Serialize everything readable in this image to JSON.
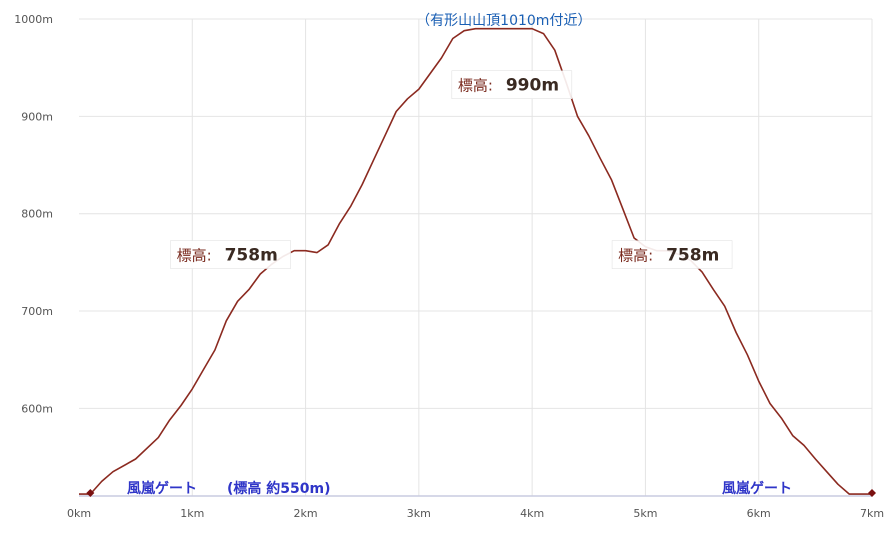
{
  "chart_data": {
    "type": "area",
    "xlim": [
      0,
      7
    ],
    "ylim": [
      510,
      1000
    ],
    "x_ticks": [
      "0km",
      "1km",
      "2km",
      "3km",
      "4km",
      "5km",
      "6km",
      "7km"
    ],
    "y_ticks": [
      "600m",
      "700m",
      "800m",
      "900m",
      "1000m"
    ],
    "grid": true,
    "series": [
      {
        "color": "#8b2a20",
        "x": [
          0.0,
          0.1,
          0.2,
          0.3,
          0.5,
          0.7,
          0.8,
          0.9,
          1.0,
          1.1,
          1.2,
          1.3,
          1.4,
          1.5,
          1.6,
          1.7,
          1.8,
          1.9,
          2.0,
          2.1,
          2.2,
          2.3,
          2.4,
          2.5,
          2.6,
          2.7,
          2.8,
          2.9,
          3.0,
          3.1,
          3.2,
          3.3,
          3.4,
          3.5,
          3.6,
          3.7,
          3.8,
          3.9,
          4.0,
          4.1,
          4.2,
          4.3,
          4.4,
          4.5,
          4.6,
          4.7,
          4.8,
          4.9,
          5.0,
          5.1,
          5.2,
          5.3,
          5.4,
          5.5,
          5.6,
          5.7,
          5.8,
          5.9,
          6.0,
          6.1,
          6.2,
          6.3,
          6.4,
          6.5,
          6.6,
          6.7,
          6.8,
          6.9,
          7.0
        ],
        "y": [
          512,
          512,
          525,
          535,
          548,
          570,
          588,
          603,
          620,
          640,
          660,
          690,
          710,
          722,
          738,
          748,
          756,
          762,
          762,
          760,
          768,
          790,
          808,
          830,
          855,
          880,
          905,
          918,
          928,
          944,
          960,
          980,
          988,
          990,
          990,
          990,
          990,
          990,
          990,
          985,
          968,
          935,
          900,
          880,
          857,
          835,
          805,
          775,
          766,
          762,
          762,
          758,
          752,
          740,
          722,
          705,
          678,
          655,
          628,
          605,
          590,
          572,
          562,
          548,
          535,
          522,
          512,
          512,
          512
        ]
      }
    ],
    "annotations": [
      {
        "label": "標高",
        "value": "758m",
        "x": 1.85,
        "y": 758
      },
      {
        "label": "標高",
        "value": "990m",
        "x": 3.45,
        "y": 990
      },
      {
        "label": "標高",
        "value": "758m",
        "x": 5.35,
        "y": 758
      }
    ],
    "peak_note": "（有形山山頂1010m付近）",
    "gates": [
      {
        "text": "風嵐ゲート",
        "sub": "(標高 約550m)",
        "x": 0.08
      },
      {
        "text": "風嵐ゲート",
        "sub": "",
        "x": 6.98
      }
    ],
    "marker_color": "#7a1010"
  }
}
